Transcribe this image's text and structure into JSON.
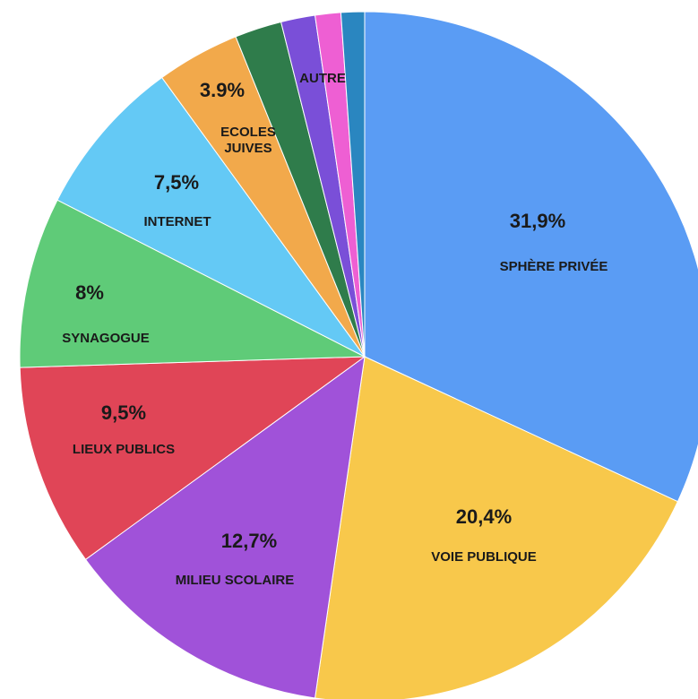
{
  "chart_data": {
    "type": "pie",
    "categories": [
      "SPHÈRE PRIVÉE",
      "VOIE PUBLIQUE",
      "MILIEU SCOLAIRE",
      "LIEUX PUBLICS",
      "SYNAGOGUE",
      "INTERNET",
      "ECOLES JUIVES",
      "AUTRE",
      null,
      null,
      null
    ],
    "values": [
      31.9,
      20.4,
      12.7,
      9.5,
      8,
      7.5,
      3.9,
      2.2,
      1.6,
      1.2,
      1.1
    ],
    "value_labels": [
      "31,9%",
      "20,4%",
      "12,7%",
      "9,5%",
      "8%",
      "7,5%",
      "3.9%",
      null,
      null,
      null,
      null
    ],
    "colors": [
      "#5a9cf4",
      "#f8c84b",
      "#a052d9",
      "#e04557",
      "#5fcb78",
      "#64c9f5",
      "#f2a94b",
      "#2f7c4b",
      "#7a4fd8",
      "#ee5fd3",
      "#2a86c0"
    ]
  }
}
